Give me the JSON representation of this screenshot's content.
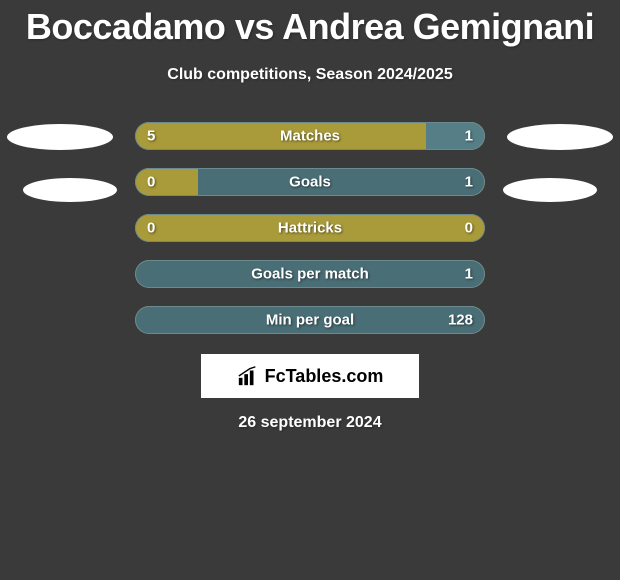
{
  "title": "Boccadamo vs Andrea Gemignani",
  "subtitle": "Club competitions, Season 2024/2025",
  "date": "26 september 2024",
  "watermark": "FcTables.com",
  "colors": {
    "bar_primary": "#a99b3a",
    "bar_secondary": "#567e87",
    "bar_secondary_alt": "#4a6e76",
    "background": "#3a3a3a",
    "text": "#ffffff"
  },
  "stats": [
    {
      "label": "Matches",
      "left_value": "5",
      "right_value": "1",
      "left_pct": 83,
      "right_pct": 17,
      "right_color": "#567e87"
    },
    {
      "label": "Goals",
      "left_value": "0",
      "right_value": "1",
      "left_pct": 18,
      "right_pct": 82,
      "right_color": "#4a6e76"
    },
    {
      "label": "Hattricks",
      "left_value": "0",
      "right_value": "0",
      "left_pct": 50,
      "right_pct": 50,
      "right_color": "#a99b3a"
    },
    {
      "label": "Goals per match",
      "left_value": "",
      "right_value": "1",
      "left_pct": 0,
      "right_pct": 100,
      "right_color": "#4a6e76"
    },
    {
      "label": "Min per goal",
      "left_value": "",
      "right_value": "128",
      "left_pct": 0,
      "right_pct": 100,
      "right_color": "#4a6e76"
    }
  ]
}
